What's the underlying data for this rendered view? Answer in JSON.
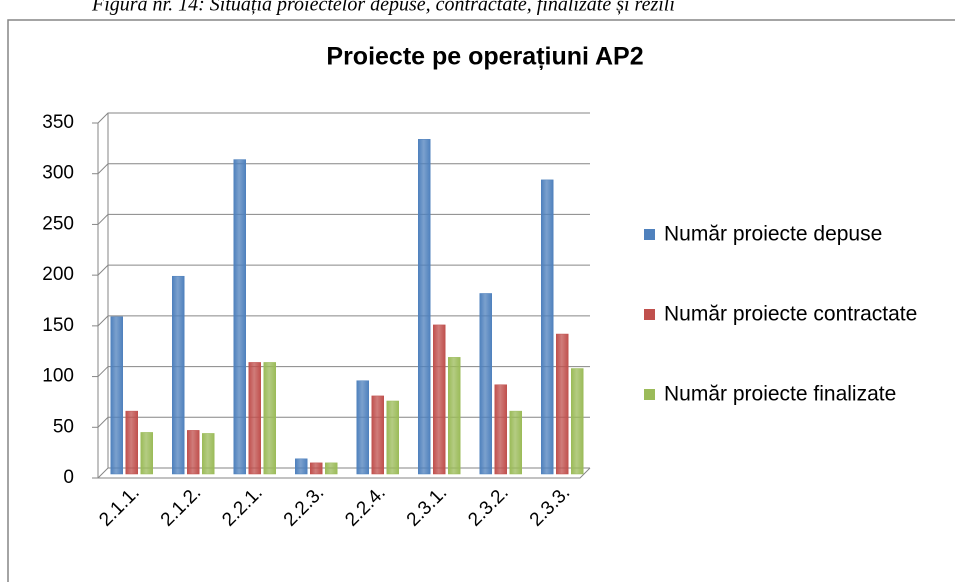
{
  "caption": "Figura nr. 14: Situația proiectelor depuse, contractate, finalizate și rezili",
  "chart_data": {
    "type": "bar",
    "title": "Proiecte pe operațiuni AP2",
    "categories": [
      "2.1.1.",
      "2.1.2.",
      "2.2.1.",
      "2.2.3.",
      "2.2.4.",
      "2.3.1.",
      "2.3.2.",
      "2.3.3."
    ],
    "series": [
      {
        "name": "Număr proiecte depuse",
        "color": "#4f81bd",
        "values": [
          155,
          195,
          310,
          15,
          92,
          330,
          178,
          290
        ]
      },
      {
        "name": "Număr proiecte contractate",
        "color": "#c0504d",
        "values": [
          62,
          43,
          110,
          11,
          77,
          147,
          88,
          138
        ]
      },
      {
        "name": "Număr proiecte finalizate",
        "color": "#9bbb59",
        "values": [
          41,
          40,
          110,
          11,
          72,
          115,
          62,
          104
        ]
      }
    ],
    "ylim": [
      0,
      350
    ],
    "yticks": [
      0,
      50,
      100,
      150,
      200,
      250,
      300,
      350
    ],
    "grid": true,
    "legend": "right"
  }
}
